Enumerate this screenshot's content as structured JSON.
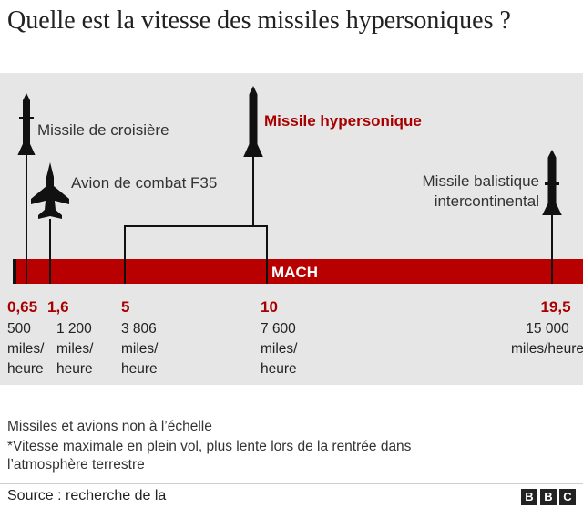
{
  "title": "Quelle est la vitesse des missiles hypersoniques ?",
  "colors": {
    "bar": "#b80000",
    "accent_text": "#a80000",
    "panel": "#e6e6e6",
    "ink": "#111111"
  },
  "chart_data": {
    "type": "bar",
    "axis_label": "MACH",
    "ticks": [
      {
        "mach": "0,65",
        "speed": [
          "500",
          "miles/",
          "heure"
        ]
      },
      {
        "mach": "1,6",
        "speed": [
          "1 200",
          "miles/",
          "heure"
        ]
      },
      {
        "mach": "5",
        "speed": [
          "3 806",
          "miles/",
          "heure"
        ]
      },
      {
        "mach": "10",
        "speed": [
          "7 600",
          "miles/",
          "heure"
        ]
      },
      {
        "mach": "19,5",
        "speed": [
          "15 000",
          "miles/heure"
        ]
      }
    ],
    "items": [
      {
        "label": "Missile de croisière",
        "mach": 0.65,
        "icon": "cruise-missile-icon",
        "highlight": false
      },
      {
        "label": "Avion de combat F35",
        "mach": 1.6,
        "icon": "fighter-jet-icon",
        "highlight": false
      },
      {
        "label": "Missile hypersonique",
        "mach_range": [
          5,
          10
        ],
        "icon": "hypersonic-missile-icon",
        "highlight": true
      },
      {
        "label": [
          "Missile balistique",
          "intercontinental"
        ],
        "mach": 19.5,
        "icon": "ballistic-missile-icon",
        "highlight": false
      }
    ]
  },
  "notes": [
    "Missiles et avions non à l’échelle",
    "*Vitesse maximale en plein vol, plus lente lors de la rentrée dans",
    "l’atmosphère terrestre"
  ],
  "source": "Source : recherche de la",
  "logo_letters": [
    "B",
    "B",
    "C"
  ]
}
